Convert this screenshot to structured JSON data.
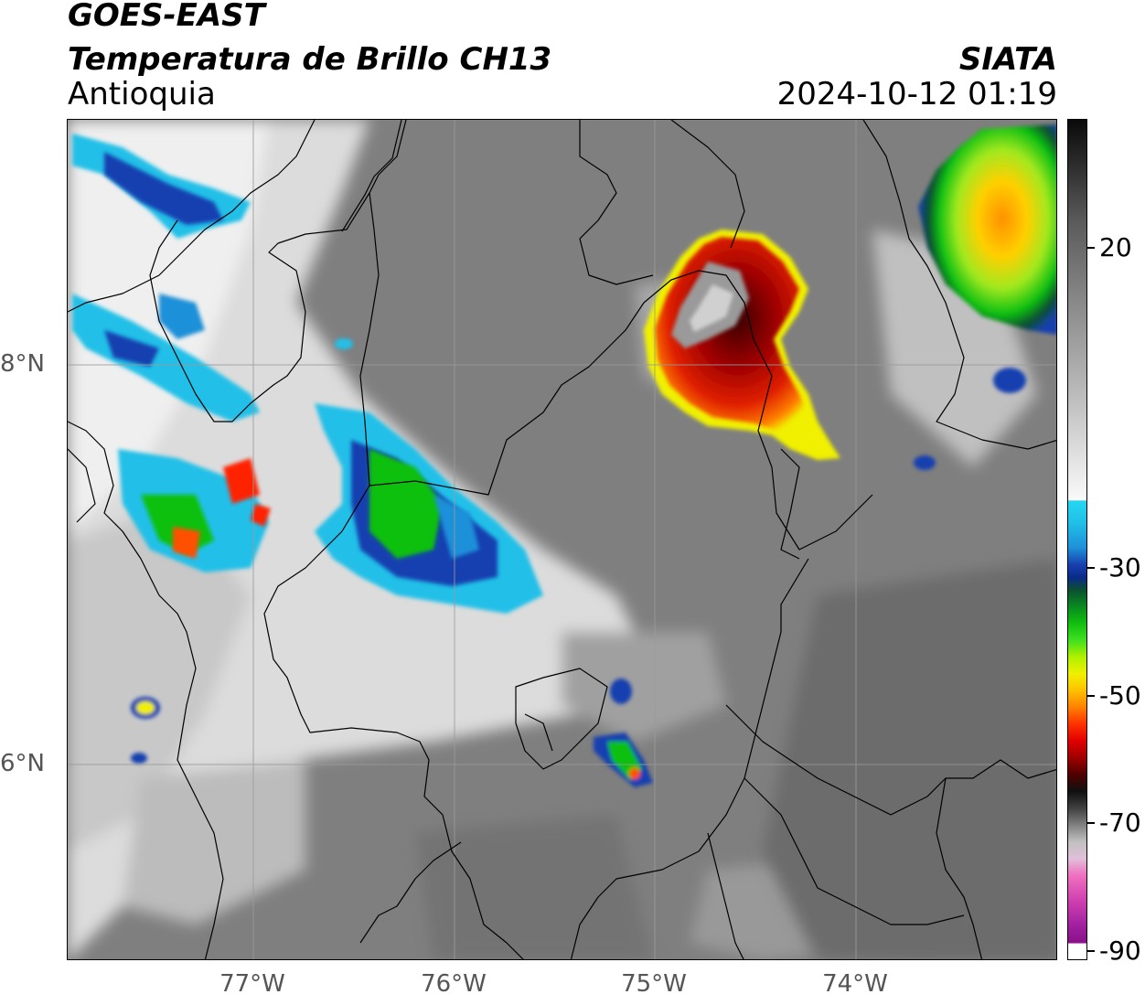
{
  "header": {
    "title_line1": "GOES-EAST",
    "title_line2": "Temperatura de Brillo CH13",
    "region": "Antioquia",
    "organization": "SIATA",
    "datetime": "2024-10-12 01:19"
  },
  "map": {
    "latitude_labels": [
      "8°N",
      "6°N"
    ],
    "longitude_labels": [
      "77°W",
      "76°W",
      "75°W",
      "74°W"
    ],
    "colors": {
      "background_gray": "#808080",
      "warm_cloud_white": "#f0f0f0",
      "cold_cloud_blue": "#1840b0",
      "cold_cloud_green": "#10c010",
      "deep_convection_red": "#c00000",
      "overshooting_top_gray": "#c8c8c8",
      "border_lines": "#000000",
      "grid_lines": "#9a9a9a"
    }
  },
  "colorbar": {
    "tick_labels": [
      "20",
      "-30",
      "-50",
      "-70",
      "-90"
    ]
  }
}
